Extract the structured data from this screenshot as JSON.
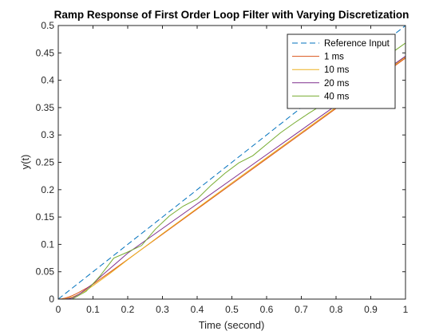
{
  "chart_data": {
    "type": "line",
    "title": "Ramp Response of First Order Loop Filter with Varying Discretization",
    "xlabel": "Time (second)",
    "ylabel": "y(t)",
    "xlim": [
      0,
      1
    ],
    "ylim": [
      0,
      0.5
    ],
    "xticks": [
      "0",
      "0.1",
      "0.2",
      "0.3",
      "0.4",
      "0.5",
      "0.6",
      "0.7",
      "0.8",
      "0.9",
      "1"
    ],
    "yticks": [
      "0",
      "0.05",
      "0.1",
      "0.15",
      "0.2",
      "0.25",
      "0.3",
      "0.35",
      "0.4",
      "0.45",
      "0.5"
    ],
    "grid": false,
    "legend_position": "top-right",
    "series": [
      {
        "name": "Reference Input",
        "color": "#0072BD",
        "dash": "dashed",
        "x": [
          0,
          1
        ],
        "y": [
          0,
          0.5
        ]
      },
      {
        "name": "1 ms",
        "color": "#D95319",
        "dash": "solid",
        "x": [
          0,
          0.01,
          0.02,
          0.03,
          0.04,
          0.05,
          0.06,
          0.08,
          0.1,
          0.15,
          0.2,
          0.3,
          0.4,
          0.5,
          0.6,
          0.7,
          0.8,
          0.9,
          1.0
        ],
        "y": [
          0,
          0.0005,
          0.0018,
          0.0038,
          0.0063,
          0.0092,
          0.0124,
          0.0195,
          0.0272,
          0.0497,
          0.0725,
          0.1185,
          0.1645,
          0.2105,
          0.2565,
          0.3025,
          0.3485,
          0.3945,
          0.4405
        ]
      },
      {
        "name": "10 ms",
        "color": "#EDB120",
        "dash": "solid",
        "x": [
          0,
          0.01,
          0.02,
          0.03,
          0.04,
          0.05,
          0.06,
          0.07,
          0.08,
          0.1,
          0.15,
          0.2,
          0.3,
          0.4,
          0.5,
          0.6,
          0.7,
          0.8,
          0.9,
          1.0
        ],
        "y": [
          0,
          0,
          0.0005,
          0.0018,
          0.0038,
          0.0063,
          0.0092,
          0.0125,
          0.016,
          0.0245,
          0.0475,
          0.072,
          0.1195,
          0.166,
          0.2125,
          0.2585,
          0.3045,
          0.3505,
          0.3965,
          0.4425
        ]
      },
      {
        "name": "20 ms",
        "color": "#7E2F8E",
        "dash": "solid",
        "x": [
          0,
          0.02,
          0.04,
          0.06,
          0.08,
          0.1,
          0.12,
          0.16,
          0.2,
          0.3,
          0.4,
          0.5,
          0.6,
          0.7,
          0.8,
          0.9,
          1.0
        ],
        "y": [
          0,
          0,
          0.002,
          0.009,
          0.018,
          0.028,
          0.04,
          0.062,
          0.084,
          0.129,
          0.174,
          0.219,
          0.264,
          0.309,
          0.354,
          0.399,
          0.444
        ]
      },
      {
        "name": "40 ms",
        "color": "#77AC30",
        "dash": "solid",
        "x": [
          0,
          0.04,
          0.08,
          0.12,
          0.16,
          0.2,
          0.24,
          0.28,
          0.32,
          0.36,
          0.4,
          0.44,
          0.48,
          0.52,
          0.56,
          0.6,
          0.64,
          0.68,
          0.72,
          0.76,
          0.8,
          0.84,
          0.88,
          0.92,
          0.96,
          1.0
        ],
        "y": [
          0,
          0,
          0.014,
          0.042,
          0.075,
          0.086,
          0.098,
          0.128,
          0.152,
          0.17,
          0.183,
          0.208,
          0.23,
          0.249,
          0.262,
          0.283,
          0.304,
          0.322,
          0.339,
          0.355,
          0.371,
          0.39,
          0.41,
          0.43,
          0.45,
          0.468
        ]
      }
    ]
  }
}
